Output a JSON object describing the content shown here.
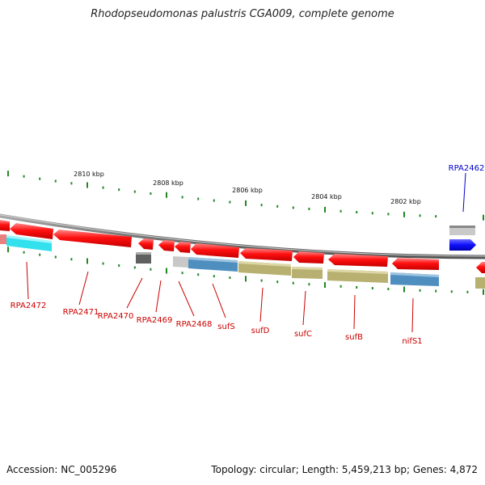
{
  "title": "Rhodopseudomonas palustris CGA009, complete genome",
  "footer": {
    "accession_label": "Accession:",
    "accession": "NC_005296",
    "topology_label": "Topology:",
    "topology": "circular",
    "length_label": "Length:",
    "length": "5,459,213 bp",
    "genes_label": "Genes:",
    "genes": "4,872"
  },
  "colors": {
    "selected": "#cc0000",
    "highlight": "#0000cc",
    "gene_arrow": "#ff0000",
    "ruler_tick": "#228822"
  },
  "ruler_labels": [
    "2810 kbp",
    "2808 kbp",
    "2806 kbp",
    "2804 kbp",
    "2802 kbp"
  ],
  "genes": [
    {
      "name": "RPA2472",
      "color": "#cc0000"
    },
    {
      "name": "RPA2471",
      "color": "#cc0000"
    },
    {
      "name": "RPA2470",
      "color": "#cc0000"
    },
    {
      "name": "RPA2469",
      "color": "#cc0000"
    },
    {
      "name": "RPA2468",
      "color": "#cc0000"
    },
    {
      "name": "sufS",
      "color": "#cc0000"
    },
    {
      "name": "sufD",
      "color": "#cc0000"
    },
    {
      "name": "sufC",
      "color": "#cc0000"
    },
    {
      "name": "sufB",
      "color": "#cc0000"
    },
    {
      "name": "nifS1",
      "color": "#cc0000"
    },
    {
      "name": "RPA2462",
      "color": "#0000cc"
    }
  ]
}
